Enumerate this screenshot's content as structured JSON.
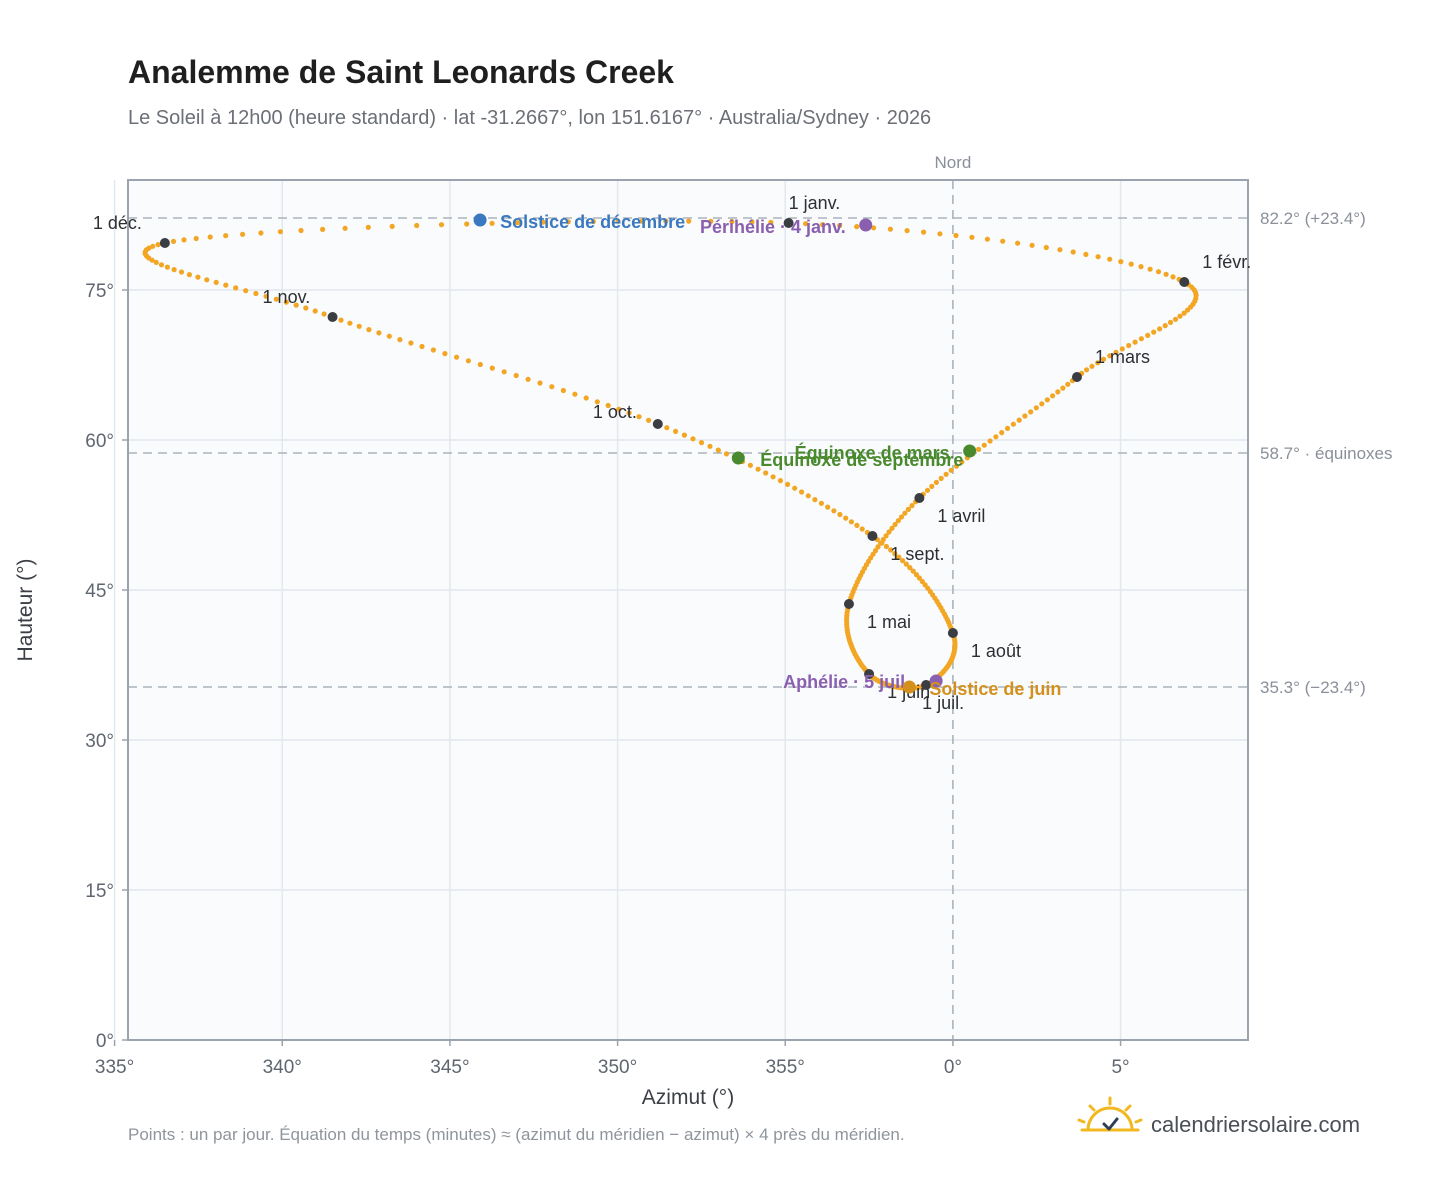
{
  "header": {
    "title": "Analemme de Saint Leonards Creek",
    "subtitle": "Le Soleil à 12h00 (heure standard) · lat -31.2667°, lon 151.6167° · Australia/Sydney · 2026"
  },
  "footer": {
    "note": "Points : un par jour. Équation du temps (minutes) ≈ (azimut du méridien − azimut) × 4 près du méridien.",
    "brand": "calendriersolaire.com"
  },
  "colors": {
    "curve": "#f2a623",
    "month_dot": "#3a3d42",
    "solstice_dec": "#3a78c0",
    "solstice_jun": "#d4901c",
    "equinox": "#4a8a2e",
    "apsis": "#8a5fb0",
    "grid": "#e3e8ee",
    "plot_bg": "#f9fbfd",
    "frame": "#9aa3ae",
    "ref_line": "#aab3bd",
    "brand_sun": "#f2b820",
    "brand_check": "#2d3f55"
  },
  "chart_data": {
    "type": "scatter",
    "xlabel": "Azimut (°)",
    "ylabel": "Hauteur (°)",
    "xlim": [
      -24.6,
      8.8
    ],
    "ylim": [
      0,
      86
    ],
    "x_ticks": [
      {
        "value": -25,
        "label": "335°"
      },
      {
        "value": -20,
        "label": "340°"
      },
      {
        "value": -15,
        "label": "345°"
      },
      {
        "value": -10,
        "label": "350°"
      },
      {
        "value": -5,
        "label": "355°"
      },
      {
        "value": 0,
        "label": "0°"
      },
      {
        "value": 5,
        "label": "5°"
      }
    ],
    "y_ticks": [
      {
        "value": 0,
        "label": "0°"
      },
      {
        "value": 15,
        "label": "15°"
      },
      {
        "value": 30,
        "label": "30°"
      },
      {
        "value": 45,
        "label": "45°"
      },
      {
        "value": 60,
        "label": "60°"
      },
      {
        "value": 75,
        "label": "75°"
      }
    ],
    "grid": true,
    "north_line": {
      "x": 0,
      "label": "Nord"
    },
    "reference_lines": [
      {
        "y": 82.2,
        "label": "82.2° (+23.4°)"
      },
      {
        "y": 58.7,
        "label": "58.7° · équinoxes"
      },
      {
        "y": 35.3,
        "label": "35.3° (−23.4°)"
      }
    ],
    "months": [
      {
        "label": "1 janv.",
        "az": -4.9,
        "alt": 81.7
      },
      {
        "label": "1 févr.",
        "az": 6.9,
        "alt": 75.8
      },
      {
        "label": "1 mars",
        "az": 3.7,
        "alt": 66.3
      },
      {
        "label": "1 avril",
        "az": -1.0,
        "alt": 54.2
      },
      {
        "label": "1 mai",
        "az": -3.1,
        "alt": 43.6
      },
      {
        "label": "1 juin",
        "az": -2.5,
        "alt": 36.6
      },
      {
        "label": "1 juil.",
        "az": -0.8,
        "alt": 35.5
      },
      {
        "label": "1 août",
        "az": 0.0,
        "alt": 40.7
      },
      {
        "label": "1 sept.",
        "az": -2.4,
        "alt": 50.4
      },
      {
        "label": "1 oct.",
        "az": -8.8,
        "alt": 61.6
      },
      {
        "label": "1 nov.",
        "az": -18.5,
        "alt": 72.3
      },
      {
        "label": "1 déc.",
        "az": -23.5,
        "alt": 79.7
      }
    ],
    "events": [
      {
        "label": "Solstice de décembre",
        "az": -14.1,
        "alt": 82.0,
        "color": "#3a78c0"
      },
      {
        "label": "Périhélie · 4 janv.",
        "az": -2.6,
        "alt": 81.5,
        "color": "#8a5fb0"
      },
      {
        "label": "Équinoxe de mars",
        "az": 0.5,
        "alt": 58.9,
        "color": "#4a8a2e"
      },
      {
        "label": "Équinoxe de septembre",
        "az": -6.4,
        "alt": 58.2,
        "color": "#4a8a2e"
      },
      {
        "label": "Aphélie · 5 juil.",
        "az": -0.5,
        "alt": 35.9,
        "color": "#8a5fb0"
      },
      {
        "label": "Solstice de juin",
        "az": -1.3,
        "alt": 35.3,
        "color": "#d4901c"
      }
    ]
  }
}
